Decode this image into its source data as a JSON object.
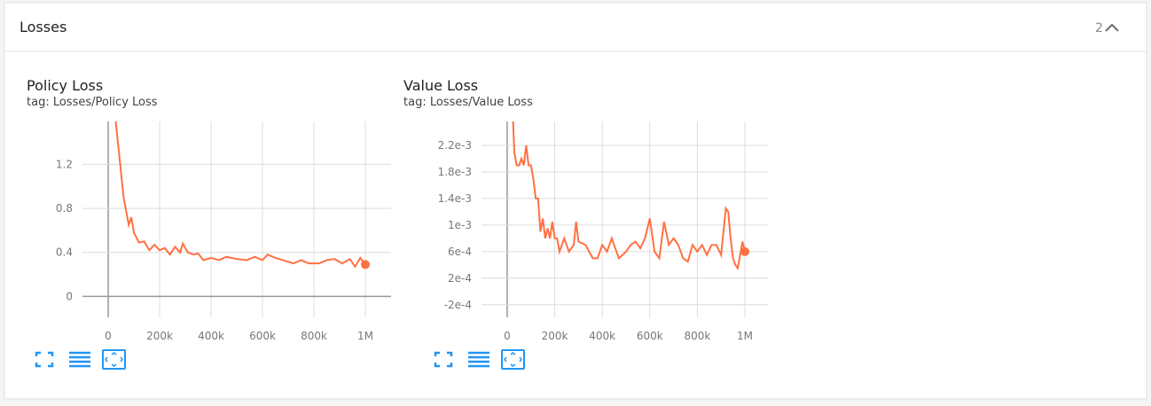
{
  "section": {
    "title": "Losses",
    "count": 2
  },
  "chart_data": [
    {
      "type": "line",
      "title": "Policy Loss",
      "subtitle": "tag: Losses/Policy Loss",
      "xlim": [
        -100000,
        1100000
      ],
      "ylim": [
        -0.19,
        1.59
      ],
      "xticks": [
        0,
        {
          "value": 200000,
          "label": "200k"
        },
        {
          "value": 400000,
          "label": "400k"
        },
        {
          "value": 600000,
          "label": "600k"
        },
        {
          "value": 800000,
          "label": "800k"
        },
        {
          "value": 1000000,
          "label": "1M"
        }
      ],
      "yticks": [
        0,
        0.4,
        0.8,
        1.2
      ],
      "grid": true,
      "x": [
        20000,
        40000,
        60000,
        80000,
        90000,
        100000,
        120000,
        140000,
        160000,
        180000,
        200000,
        220000,
        240000,
        260000,
        280000,
        290000,
        310000,
        330000,
        350000,
        370000,
        400000,
        430000,
        460000,
        500000,
        540000,
        570000,
        600000,
        620000,
        650000,
        680000,
        720000,
        750000,
        780000,
        820000,
        850000,
        880000,
        910000,
        940000,
        960000,
        980000,
        1000000
      ],
      "series": [
        {
          "color": "#ff7043",
          "values": [
            1.8,
            1.35,
            0.9,
            0.65,
            0.72,
            0.58,
            0.49,
            0.5,
            0.42,
            0.47,
            0.42,
            0.44,
            0.38,
            0.45,
            0.4,
            0.48,
            0.4,
            0.38,
            0.39,
            0.33,
            0.35,
            0.33,
            0.36,
            0.34,
            0.33,
            0.36,
            0.33,
            0.38,
            0.35,
            0.33,
            0.3,
            0.33,
            0.3,
            0.3,
            0.33,
            0.34,
            0.3,
            0.34,
            0.27,
            0.35,
            0.29
          ]
        }
      ]
    },
    {
      "type": "line",
      "title": "Value Loss",
      "subtitle": "tag: Losses/Value Loss",
      "xlim": [
        -108000,
        1097000
      ],
      "ylim": [
        -0.00039,
        0.00256
      ],
      "xticks": [
        0,
        {
          "value": 200000,
          "label": "200k"
        },
        {
          "value": 400000,
          "label": "400k"
        },
        {
          "value": 600000,
          "label": "600k"
        },
        {
          "value": 800000,
          "label": "800k"
        },
        {
          "value": 1000000,
          "label": "1M"
        }
      ],
      "yticks": [
        {
          "value": -0.0002,
          "label": "-2e-4"
        },
        {
          "value": 0.0002,
          "label": "2e-4"
        },
        {
          "value": 0.0006,
          "label": "6e-4"
        },
        {
          "value": 0.001,
          "label": "1e-3"
        },
        {
          "value": 0.0014,
          "label": "1.4e-3"
        },
        {
          "value": 0.0018,
          "label": "1.8e-3"
        },
        {
          "value": 0.0022,
          "label": "2.2e-3"
        }
      ],
      "grid": true,
      "x": [
        20000,
        30000,
        40000,
        50000,
        60000,
        70000,
        80000,
        90000,
        100000,
        110000,
        120000,
        130000,
        140000,
        150000,
        160000,
        170000,
        180000,
        190000,
        200000,
        210000,
        220000,
        240000,
        260000,
        280000,
        290000,
        300000,
        330000,
        360000,
        380000,
        400000,
        420000,
        440000,
        470000,
        500000,
        520000,
        540000,
        560000,
        580000,
        600000,
        620000,
        640000,
        660000,
        680000,
        700000,
        720000,
        740000,
        760000,
        780000,
        800000,
        820000,
        840000,
        860000,
        880000,
        900000,
        920000,
        930000,
        940000,
        950000,
        960000,
        970000,
        990000,
        1000000
      ],
      "series": [
        {
          "color": "#ff7043",
          "values": [
            0.003,
            0.0021,
            0.0019,
            0.0019,
            0.002,
            0.0019,
            0.0022,
            0.0019,
            0.0019,
            0.0017,
            0.0014,
            0.0014,
            0.0009,
            0.0011,
            0.0008,
            0.00095,
            0.0008,
            0.00105,
            0.0008,
            0.0008,
            0.0006,
            0.0008,
            0.0006,
            0.0007,
            0.00105,
            0.00075,
            0.0007,
            0.0005,
            0.0005,
            0.0007,
            0.0006,
            0.0008,
            0.0005,
            0.0006,
            0.0007,
            0.00075,
            0.00065,
            0.0008,
            0.0011,
            0.0006,
            0.0005,
            0.00105,
            0.0007,
            0.0008,
            0.0007,
            0.0005,
            0.00045,
            0.0007,
            0.0006,
            0.0007,
            0.00055,
            0.0007,
            0.0007,
            0.00055,
            0.00125,
            0.0012,
            0.0008,
            0.0005,
            0.0004,
            0.00035,
            0.00075,
            0.0006
          ]
        }
      ]
    }
  ]
}
